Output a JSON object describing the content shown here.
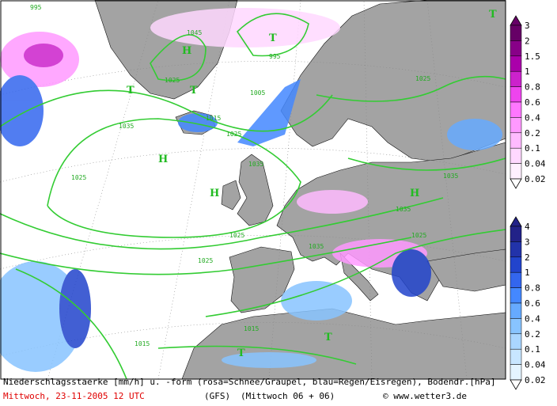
{
  "caption": {
    "line1": "Niederschlagsstaerke [mm/h] u. -form (rosa=Schnee/Graupel, blau=Regen/Eisregen), Bodendr.[hPa]",
    "date": "Mittwoch, 23-11-2005  12 UTC",
    "model": "(GFS)",
    "run": "(Mittwoch 06 + 06)",
    "credit": "© www.wetter3.de"
  },
  "legend_snow": {
    "levels": [
      3,
      2,
      1.5,
      1,
      0.8,
      0.6,
      0.4,
      0.2,
      0.1,
      0.04,
      0.02
    ],
    "colors": [
      "#660066",
      "#880088",
      "#aa00aa",
      "#cc22cc",
      "#ee44ee",
      "#ff77ff",
      "#ff99ff",
      "#ffbbff",
      "#ffd8ff",
      "#fff0ff"
    ]
  },
  "legend_rain": {
    "levels": [
      4,
      3,
      2,
      1,
      0.8,
      0.6,
      0.4,
      0.2,
      0.1,
      0.04,
      0.02
    ],
    "colors": [
      "#222288",
      "#2233aa",
      "#2244cc",
      "#3366ee",
      "#4488ff",
      "#66aaff",
      "#88c4ff",
      "#aad6ff",
      "#c8e6ff",
      "#e4f4ff"
    ]
  },
  "isobar_labels": [
    "995",
    "1045",
    "1025",
    "1005",
    "995",
    "1015",
    "1025",
    "1035",
    "1025",
    "1035",
    "1035",
    "1025",
    "1025",
    "1015",
    "1015",
    "1025",
    "1035",
    "1035",
    "1025"
  ],
  "centers": [
    "H",
    "T",
    "T",
    "H",
    "H",
    "T",
    "T",
    "T",
    "H",
    "T"
  ]
}
